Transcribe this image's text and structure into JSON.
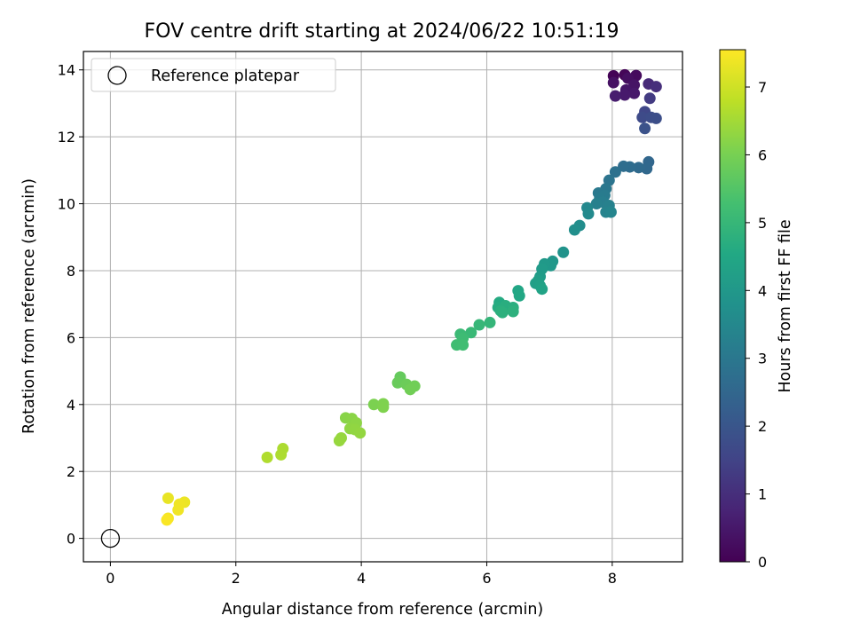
{
  "chart_data": {
    "type": "scatter",
    "title": "FOV centre drift starting at 2024/06/22 10:51:19",
    "xlabel": "Angular distance from reference (arcmin)",
    "ylabel": "Rotation from reference (arcmin)",
    "xlim": [
      -0.43,
      9.12
    ],
    "ylim": [
      -0.7,
      14.55
    ],
    "xticks": [
      0,
      2,
      4,
      6,
      8
    ],
    "yticks": [
      0,
      2,
      4,
      6,
      8,
      10,
      12,
      14
    ],
    "grid": true,
    "legend": {
      "placement": "top-left",
      "label": "Reference platepar",
      "x": 0,
      "y": 0
    },
    "colorbar": {
      "label": "Hours from first FF file",
      "colormap": "viridis",
      "range": [
        0,
        7.55
      ],
      "ticks": [
        0,
        1,
        2,
        3,
        4,
        5,
        6,
        7
      ]
    },
    "points": [
      {
        "x": 8.02,
        "y": 13.82,
        "c": 0.05
      },
      {
        "x": 8.2,
        "y": 13.85,
        "c": 0.1
      },
      {
        "x": 8.38,
        "y": 13.83,
        "c": 0.2
      },
      {
        "x": 8.25,
        "y": 13.75,
        "c": 0.3
      },
      {
        "x": 8.02,
        "y": 13.62,
        "c": 0.35
      },
      {
        "x": 8.35,
        "y": 13.55,
        "c": 0.4
      },
      {
        "x": 8.22,
        "y": 13.4,
        "c": 0.45
      },
      {
        "x": 8.35,
        "y": 13.3,
        "c": 0.5
      },
      {
        "x": 8.2,
        "y": 13.25,
        "c": 0.55
      },
      {
        "x": 8.05,
        "y": 13.22,
        "c": 0.6
      },
      {
        "x": 8.58,
        "y": 13.58,
        "c": 0.9
      },
      {
        "x": 8.7,
        "y": 13.5,
        "c": 1.0
      },
      {
        "x": 8.6,
        "y": 13.15,
        "c": 1.3
      },
      {
        "x": 8.52,
        "y": 12.75,
        "c": 1.6
      },
      {
        "x": 8.48,
        "y": 12.58,
        "c": 1.7
      },
      {
        "x": 8.62,
        "y": 12.58,
        "c": 1.75
      },
      {
        "x": 8.7,
        "y": 12.55,
        "c": 1.8
      },
      {
        "x": 8.52,
        "y": 12.25,
        "c": 1.9
      },
      {
        "x": 8.58,
        "y": 11.25,
        "c": 2.5
      },
      {
        "x": 8.55,
        "y": 11.05,
        "c": 2.55
      },
      {
        "x": 8.42,
        "y": 11.08,
        "c": 2.6
      },
      {
        "x": 8.28,
        "y": 11.1,
        "c": 2.65
      },
      {
        "x": 8.18,
        "y": 11.12,
        "c": 2.7
      },
      {
        "x": 8.05,
        "y": 10.95,
        "c": 2.8
      },
      {
        "x": 7.95,
        "y": 10.7,
        "c": 2.9
      },
      {
        "x": 7.9,
        "y": 10.45,
        "c": 3.0
      },
      {
        "x": 7.78,
        "y": 10.32,
        "c": 3.05
      },
      {
        "x": 7.88,
        "y": 10.25,
        "c": 3.1
      },
      {
        "x": 7.8,
        "y": 10.15,
        "c": 3.15
      },
      {
        "x": 7.85,
        "y": 10.05,
        "c": 3.2
      },
      {
        "x": 7.75,
        "y": 10.0,
        "c": 3.25
      },
      {
        "x": 7.95,
        "y": 9.95,
        "c": 3.3
      },
      {
        "x": 7.9,
        "y": 9.75,
        "c": 3.35
      },
      {
        "x": 7.98,
        "y": 9.75,
        "c": 3.4
      },
      {
        "x": 7.6,
        "y": 9.88,
        "c": 3.5
      },
      {
        "x": 7.62,
        "y": 9.7,
        "c": 3.55
      },
      {
        "x": 7.48,
        "y": 9.35,
        "c": 3.65
      },
      {
        "x": 7.4,
        "y": 9.22,
        "c": 3.7
      },
      {
        "x": 7.22,
        "y": 8.55,
        "c": 3.85
      },
      {
        "x": 7.05,
        "y": 8.28,
        "c": 3.95
      },
      {
        "x": 7.02,
        "y": 8.15,
        "c": 4.0
      },
      {
        "x": 6.92,
        "y": 8.2,
        "c": 4.05
      },
      {
        "x": 6.88,
        "y": 8.05,
        "c": 4.1
      },
      {
        "x": 6.85,
        "y": 7.82,
        "c": 4.15
      },
      {
        "x": 6.82,
        "y": 7.7,
        "c": 4.2
      },
      {
        "x": 6.78,
        "y": 7.62,
        "c": 4.25
      },
      {
        "x": 6.85,
        "y": 7.55,
        "c": 4.3
      },
      {
        "x": 6.88,
        "y": 7.45,
        "c": 4.35
      },
      {
        "x": 6.5,
        "y": 7.4,
        "c": 4.45
      },
      {
        "x": 6.52,
        "y": 7.25,
        "c": 4.5
      },
      {
        "x": 6.2,
        "y": 7.05,
        "c": 4.6
      },
      {
        "x": 6.18,
        "y": 6.9,
        "c": 4.65
      },
      {
        "x": 6.3,
        "y": 6.95,
        "c": 4.7
      },
      {
        "x": 6.42,
        "y": 6.9,
        "c": 4.72
      },
      {
        "x": 6.22,
        "y": 6.8,
        "c": 4.75
      },
      {
        "x": 6.25,
        "y": 6.75,
        "c": 4.78
      },
      {
        "x": 6.42,
        "y": 6.78,
        "c": 4.8
      },
      {
        "x": 6.05,
        "y": 6.45,
        "c": 4.95
      },
      {
        "x": 5.88,
        "y": 6.38,
        "c": 5.0
      },
      {
        "x": 5.75,
        "y": 6.15,
        "c": 5.05
      },
      {
        "x": 5.58,
        "y": 6.1,
        "c": 5.1
      },
      {
        "x": 5.62,
        "y": 5.98,
        "c": 5.15
      },
      {
        "x": 5.52,
        "y": 5.78,
        "c": 5.2
      },
      {
        "x": 5.62,
        "y": 5.78,
        "c": 5.22
      },
      {
        "x": 4.62,
        "y": 4.82,
        "c": 5.75
      },
      {
        "x": 4.58,
        "y": 4.65,
        "c": 5.8
      },
      {
        "x": 4.72,
        "y": 4.6,
        "c": 5.85
      },
      {
        "x": 4.85,
        "y": 4.55,
        "c": 5.9
      },
      {
        "x": 4.78,
        "y": 4.45,
        "c": 5.92
      },
      {
        "x": 4.2,
        "y": 4.0,
        "c": 6.05
      },
      {
        "x": 4.35,
        "y": 4.02,
        "c": 6.08
      },
      {
        "x": 4.35,
        "y": 3.92,
        "c": 6.1
      },
      {
        "x": 3.75,
        "y": 3.6,
        "c": 6.2
      },
      {
        "x": 3.85,
        "y": 3.58,
        "c": 6.22
      },
      {
        "x": 3.92,
        "y": 3.45,
        "c": 6.25
      },
      {
        "x": 3.82,
        "y": 3.28,
        "c": 6.28
      },
      {
        "x": 3.9,
        "y": 3.25,
        "c": 6.3
      },
      {
        "x": 3.98,
        "y": 3.15,
        "c": 6.32
      },
      {
        "x": 3.68,
        "y": 3.0,
        "c": 6.35
      },
      {
        "x": 3.65,
        "y": 2.92,
        "c": 6.37
      },
      {
        "x": 2.75,
        "y": 2.68,
        "c": 6.6
      },
      {
        "x": 2.72,
        "y": 2.5,
        "c": 6.62
      },
      {
        "x": 2.5,
        "y": 2.42,
        "c": 6.65
      },
      {
        "x": 0.92,
        "y": 1.2,
        "c": 7.3
      },
      {
        "x": 1.18,
        "y": 1.08,
        "c": 7.35
      },
      {
        "x": 1.1,
        "y": 1.02,
        "c": 7.38
      },
      {
        "x": 1.08,
        "y": 0.85,
        "c": 7.4
      },
      {
        "x": 0.92,
        "y": 0.6,
        "c": 7.45
      },
      {
        "x": 0.9,
        "y": 0.55,
        "c": 7.5
      }
    ]
  }
}
